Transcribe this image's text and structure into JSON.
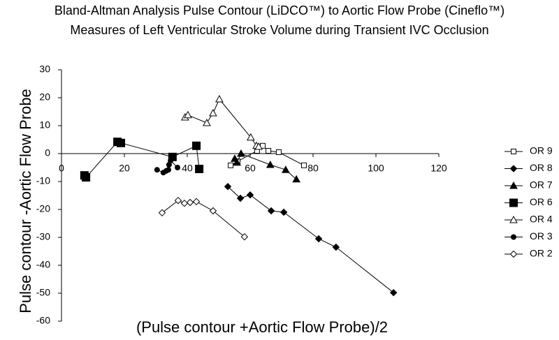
{
  "chart_data": {
    "type": "scatter",
    "title": [
      "Bland-Altman Analysis Pulse Contour (LiDCO™) to Aortic Flow Probe (Cineflo™)",
      "Measures of Left Ventricular Stroke Volume during Transient IVC Occlusion"
    ],
    "x_label": "(Pulse contour +Aortic Flow Probe)/2",
    "y_label": "Pulse contour -Aortic Flow Probe",
    "xlim": [
      0,
      120
    ],
    "xticks": [
      0,
      20,
      40,
      60,
      80,
      100,
      120
    ],
    "ylim": [
      -60,
      30
    ],
    "yticks": [
      -60,
      -50,
      -40,
      -30,
      -20,
      -10,
      0,
      10,
      20,
      30
    ],
    "legend": "right",
    "series": [
      {
        "name": "OR 9",
        "color": "#000000",
        "marker": "square-open",
        "x": [
          53.8,
          56.0,
          62.2,
          64.0,
          65.8,
          69.1,
          77.1
        ],
        "values": [
          -4.2,
          -2.8,
          1.0,
          2.8,
          1.0,
          0.5,
          -4.2
        ]
      },
      {
        "name": "OR 8",
        "color": "#000000",
        "marker": "diamond",
        "x": [
          52.9,
          56.9,
          60.0,
          66.7,
          70.7,
          81.8,
          87.3,
          105.6
        ],
        "values": [
          -11.8,
          -16.0,
          -14.8,
          -20.5,
          -21.0,
          -30.5,
          -33.5,
          -49.8
        ]
      },
      {
        "name": "OR 7",
        "color": "#000000",
        "marker": "triangle",
        "x": [
          55.1,
          55.8,
          57.1,
          66.4,
          71.3,
          74.7
        ],
        "values": [
          -1.8,
          -3.2,
          0.0,
          -4.0,
          -5.8,
          -9.2
        ]
      },
      {
        "name": "OR 6",
        "color": "#000000",
        "marker": "square",
        "x": [
          7.3,
          7.8,
          17.8,
          18.9,
          35.3,
          42.9,
          43.8
        ],
        "values": [
          -7.8,
          -8.5,
          4.2,
          3.8,
          -1.2,
          2.8,
          -5.5
        ]
      },
      {
        "name": "OR 4",
        "color": "#000000",
        "marker": "triangle-open",
        "x": [
          39.3,
          40.2,
          46.2,
          48.2,
          50.2,
          60.2,
          62.0,
          62.7
        ],
        "values": [
          13.0,
          13.8,
          11.0,
          14.5,
          19.5,
          5.8,
          2.8,
          2.5
        ]
      },
      {
        "name": "OR 3",
        "color": "#000000",
        "marker": "circle",
        "x": [
          30.4,
          32.4,
          33.3,
          34.0,
          34.2,
          34.7,
          36.9
        ],
        "values": [
          -5.8,
          -6.8,
          -6.2,
          -5.8,
          -4.0,
          -2.5,
          -5.0
        ]
      },
      {
        "name": "OR 2",
        "color": "#000000",
        "marker": "diamond-open",
        "x": [
          32.0,
          37.1,
          39.1,
          40.9,
          42.9,
          48.2,
          58.2
        ],
        "values": [
          -21.2,
          -16.8,
          -17.8,
          -17.5,
          -17.2,
          -20.5,
          -29.8
        ]
      }
    ]
  }
}
